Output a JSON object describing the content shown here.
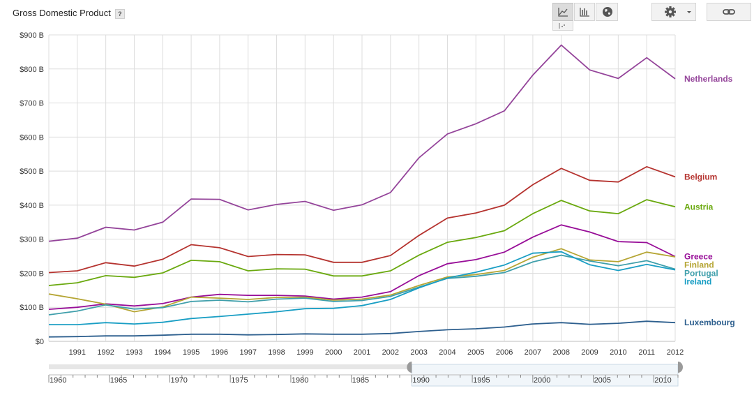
{
  "header": {
    "title": "Gross Domestic Product",
    "help_label": "?"
  },
  "toolbar": {
    "icons": [
      "line-chart-icon",
      "bar-chart-icon",
      "globe-icon",
      "scatter-chart-icon",
      "gear-icon",
      "link-icon"
    ]
  },
  "chart_data": {
    "type": "line",
    "title": "Gross Domestic Product",
    "ylim": [
      0,
      900
    ],
    "xlim": [
      1990,
      2012
    ],
    "yticks": [
      0,
      100,
      200,
      300,
      400,
      500,
      600,
      700,
      800,
      900
    ],
    "ytick_labels": [
      "$0",
      "$100 B",
      "$200 B",
      "$300 B",
      "$400 B",
      "$500 B",
      "$600 B",
      "$700 B",
      "$800 B",
      "$900 B"
    ],
    "x": [
      1990,
      1991,
      1992,
      1993,
      1994,
      1995,
      1996,
      1997,
      1998,
      1999,
      2000,
      2001,
      2002,
      2003,
      2004,
      2005,
      2006,
      2007,
      2008,
      2009,
      2010,
      2011,
      2012
    ],
    "xtick_labels": [
      "1991",
      "1992",
      "1993",
      "1994",
      "1995",
      "1996",
      "1997",
      "1998",
      "1999",
      "2000",
      "2001",
      "2002",
      "2003",
      "2004",
      "2005",
      "2006",
      "2007",
      "2008",
      "2009",
      "2010",
      "2011",
      "2012"
    ],
    "grid": true,
    "legend": "right",
    "series": [
      {
        "name": "Netherlands",
        "color": "#94449a",
        "values": [
          294,
          303,
          335,
          327,
          350,
          418,
          417,
          386,
          402,
          411,
          385,
          401,
          437,
          539,
          609,
          639,
          677,
          782,
          870,
          797,
          772,
          833,
          771
        ]
      },
      {
        "name": "Belgium",
        "color": "#b5332f",
        "values": [
          202,
          207,
          231,
          221,
          241,
          284,
          275,
          249,
          255,
          254,
          232,
          232,
          252,
          311,
          362,
          377,
          400,
          460,
          508,
          473,
          468,
          513,
          483
        ]
      },
      {
        "name": "Austria",
        "color": "#6aa90f",
        "values": [
          164,
          172,
          193,
          188,
          201,
          238,
          234,
          207,
          213,
          212,
          192,
          192,
          207,
          253,
          291,
          305,
          325,
          375,
          414,
          383,
          375,
          416,
          395
        ]
      },
      {
        "name": "Greece",
        "color": "#980e98",
        "values": [
          94,
          100,
          110,
          104,
          111,
          130,
          138,
          135,
          135,
          133,
          124,
          130,
          146,
          193,
          228,
          240,
          262,
          306,
          342,
          321,
          293,
          290,
          249
        ]
      },
      {
        "name": "Finland",
        "color": "#b5a534",
        "values": [
          139,
          125,
          109,
          87,
          101,
          130,
          127,
          123,
          129,
          130,
          121,
          124,
          136,
          164,
          189,
          196,
          208,
          247,
          272,
          239,
          234,
          262,
          248
        ]
      },
      {
        "name": "Portugal",
        "color": "#3f9fab",
        "values": [
          78,
          89,
          107,
          95,
          99,
          117,
          121,
          116,
          124,
          127,
          117,
          120,
          132,
          159,
          185,
          191,
          202,
          233,
          253,
          236,
          222,
          237,
          212
        ]
      },
      {
        "name": "Ireland",
        "color": "#199ec4",
        "values": [
          49,
          49,
          55,
          51,
          56,
          67,
          73,
          80,
          87,
          96,
          97,
          105,
          123,
          157,
          186,
          203,
          224,
          259,
          263,
          225,
          208,
          226,
          210
        ]
      },
      {
        "name": "Luxembourg",
        "color": "#2d5f8e",
        "values": [
          13,
          14,
          16,
          16,
          18,
          21,
          21,
          19,
          20,
          22,
          21,
          21,
          23,
          29,
          34,
          37,
          42,
          51,
          55,
          50,
          53,
          59,
          55
        ]
      }
    ]
  },
  "range_selector": {
    "tick_labels": [
      "1960",
      "1965",
      "1970",
      "1975",
      "1980",
      "1985",
      "1990",
      "1995",
      "2000",
      "2005",
      "2010"
    ],
    "tick_years": [
      1960,
      1965,
      1970,
      1975,
      1980,
      1985,
      1990,
      1995,
      2000,
      2005,
      2010
    ],
    "full_range": [
      1960,
      2012
    ],
    "selected": [
      1990,
      2012
    ]
  }
}
